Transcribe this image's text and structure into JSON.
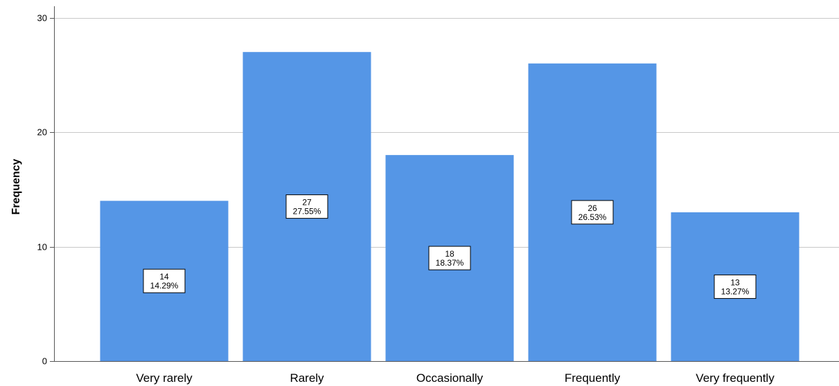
{
  "chart_data": {
    "type": "bar",
    "categories": [
      "Very rarely",
      "Rarely",
      "Occasionally",
      "Frequently",
      "Very frequently"
    ],
    "values": [
      14,
      27,
      18,
      26,
      13
    ],
    "percent_labels": [
      "14.29%",
      "27.55%",
      "18.37%",
      "26.53%",
      "13.27%"
    ],
    "xlabel": "",
    "ylabel": "Frequency",
    "ylim": [
      0,
      31
    ],
    "yticks": [
      0,
      10,
      20,
      30
    ],
    "grid": true,
    "legend": "none",
    "colors": {
      "bar": "#5596e6",
      "grid": "#c8c8c8",
      "axis": "#555555"
    }
  }
}
